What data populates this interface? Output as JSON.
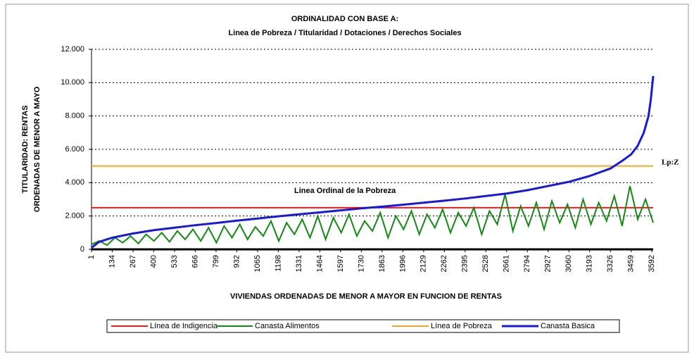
{
  "chart_data": {
    "type": "line",
    "title": "ORDINALIDAD CON BASE A:",
    "subtitle": "Linea de Pobreza / Titularidad / Dotaciones / Derechos Sociales",
    "ylabel": [
      "TITULARIDAD: RENTAS",
      "ORDENADAS DE MENOR A MAYO"
    ],
    "xlabel": "VIVIENDAS ORDENADAS DE MENOR A MAYOR EN FUNCION DE RENTAS",
    "annotations": [
      "Linea Ordinal de la Pobreza",
      "Lp:Z"
    ],
    "xlim": [
      1,
      3600
    ],
    "xticks": [
      1,
      134,
      267,
      400,
      533,
      666,
      799,
      932,
      1065,
      1198,
      1331,
      1464,
      1597,
      1730,
      1863,
      1996,
      2129,
      2262,
      2395,
      2528,
      2661,
      2794,
      2927,
      3060,
      3193,
      3326,
      3459,
      3592
    ],
    "ylim": [
      0,
      12000
    ],
    "yticks": [
      0,
      {
        "value": 2000,
        "label": "2.000"
      },
      {
        "value": 4000,
        "label": "4.000"
      },
      {
        "value": 6000,
        "label": "6.000"
      },
      {
        "value": 8000,
        "label": "8.000"
      },
      {
        "value": 10000,
        "label": "10.000"
      },
      {
        "value": 12000,
        "label": "12.000"
      }
    ],
    "grid": true,
    "legend": "bottom",
    "series": [
      {
        "name": "Línea de Indigencia",
        "color": "#ee1c1c",
        "x": [
          1,
          3600
        ],
        "values": [
          2500,
          2500
        ]
      },
      {
        "name": "Canasta Alimentos",
        "color": "#138a13",
        "x": [
          1,
          51,
          101,
          151,
          201,
          251,
          301,
          351,
          401,
          451,
          501,
          551,
          601,
          651,
          701,
          751,
          801,
          851,
          901,
          951,
          1001,
          1051,
          1101,
          1151,
          1201,
          1251,
          1301,
          1351,
          1401,
          1451,
          1501,
          1551,
          1601,
          1651,
          1701,
          1751,
          1801,
          1851,
          1901,
          1951,
          2001,
          2051,
          2101,
          2151,
          2201,
          2251,
          2301,
          2351,
          2401,
          2451,
          2501,
          2551,
          2601,
          2651,
          2701,
          2751,
          2801,
          2851,
          2901,
          2951,
          3001,
          3051,
          3101,
          3151,
          3201,
          3251,
          3301,
          3351,
          3401,
          3451,
          3501,
          3551,
          3600
        ],
        "values": [
          300,
          500,
          250,
          700,
          400,
          800,
          350,
          900,
          500,
          1000,
          450,
          1100,
          600,
          1200,
          500,
          1300,
          400,
          1400,
          700,
          1500,
          600,
          1350,
          800,
          1700,
          500,
          1600,
          900,
          1800,
          700,
          2000,
          600,
          1900,
          1000,
          2100,
          800,
          1700,
          1100,
          2200,
          700,
          2000,
          1200,
          2300,
          900,
          2100,
          1300,
          2400,
          1000,
          2200,
          1400,
          2500,
          900,
          2300,
          1500,
          3300,
          1100,
          2600,
          1400,
          2800,
          1200,
          2900,
          1600,
          2700,
          1300,
          3000,
          1500,
          2800,
          1700,
          3200,
          1400,
          3800,
          1800,
          3000,
          1600
        ]
      },
      {
        "name": "Línea de Pobreza",
        "color": "#f5a623",
        "x": [
          1,
          3600
        ],
        "values": [
          5000,
          5000
        ]
      },
      {
        "name": "Canasta Basica",
        "color": "#1818e0",
        "x": [
          1,
          50,
          134,
          267,
          400,
          533,
          666,
          799,
          932,
          1065,
          1198,
          1331,
          1464,
          1597,
          1730,
          1863,
          1996,
          2129,
          2262,
          2395,
          2528,
          2661,
          2794,
          2927,
          3060,
          3193,
          3326,
          3400,
          3459,
          3500,
          3540,
          3570,
          3585,
          3600
        ],
        "values": [
          100,
          450,
          700,
          950,
          1150,
          1300,
          1450,
          1580,
          1720,
          1850,
          1980,
          2100,
          2220,
          2340,
          2460,
          2560,
          2680,
          2800,
          2920,
          3050,
          3200,
          3350,
          3550,
          3800,
          4050,
          4400,
          4850,
          5300,
          5700,
          6200,
          7000,
          8000,
          9000,
          10400
        ]
      }
    ]
  }
}
